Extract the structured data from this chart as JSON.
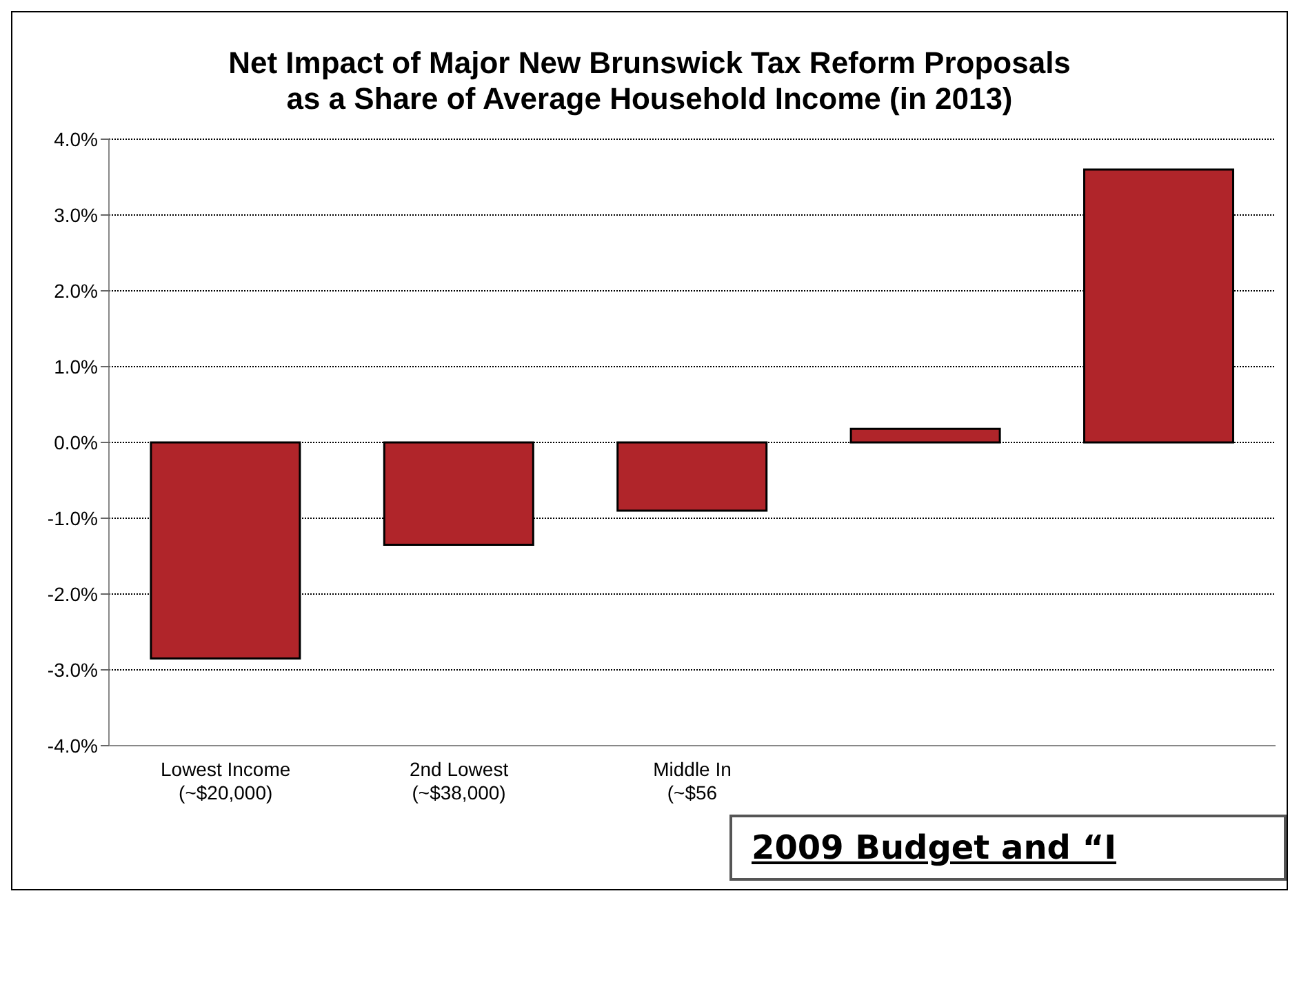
{
  "chart_data": {
    "type": "bar",
    "title": "Net Impact of Major New Brunswick Tax Reform Proposals\nas a Share of Average Household Income (in 2013)",
    "categories": [
      "Lowest Income\n(~$20,000)",
      "2nd Lowest\n(~$38,000)",
      "Middle In\n(~$56",
      null,
      null
    ],
    "values": [
      -2.85,
      -1.35,
      -0.9,
      0.18,
      3.6
    ],
    "color": "#b0252a",
    "ylim": [
      -4,
      4
    ],
    "yticks": [
      {
        "value": -4,
        "label": "-4.0%"
      },
      {
        "value": -3,
        "label": "-3.0%"
      },
      {
        "value": -2,
        "label": "-2.0%"
      },
      {
        "value": -1,
        "label": "-1.0%"
      },
      {
        "value": 0,
        "label": "0.0%"
      },
      {
        "value": 1,
        "label": "1.0%"
      },
      {
        "value": 2,
        "label": "2.0%"
      },
      {
        "value": 3,
        "label": "3.0%"
      },
      {
        "value": 4,
        "label": "4.0%"
      }
    ],
    "grid": "y",
    "annotations": [
      "2009 Budget and “I"
    ]
  }
}
